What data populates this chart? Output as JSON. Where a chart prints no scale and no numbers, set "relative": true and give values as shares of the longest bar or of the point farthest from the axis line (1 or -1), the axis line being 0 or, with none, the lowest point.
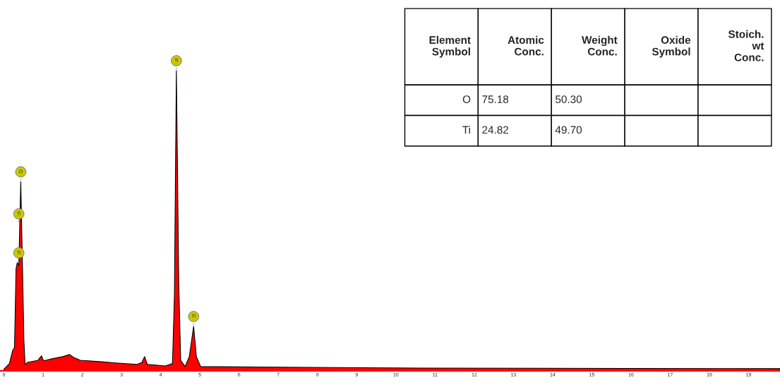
{
  "chart_data": {
    "type": "area",
    "relative": true,
    "x": [
      0,
      0.14,
      0.22,
      0.27,
      0.31,
      0.34,
      0.38,
      0.43,
      0.47,
      0.51,
      0.54,
      0.6,
      0.87,
      0.96,
      1.01,
      1.23,
      1.5,
      1.68,
      1.77,
      1.95,
      2.49,
      2.85,
      3.39,
      3.52,
      3.59,
      3.66,
      4.12,
      4.3,
      4.35,
      4.4,
      4.46,
      4.51,
      4.62,
      4.73,
      4.84,
      4.91,
      5.02,
      7.0,
      10.6,
      19.8
    ],
    "series": [
      {
        "color": "#ff0000",
        "values": [
          0.005,
          0.024,
          0.066,
          0.078,
          0.34,
          0.36,
          0.35,
          0.63,
          0.37,
          0.1,
          0.02,
          0.028,
          0.035,
          0.05,
          0.033,
          0.04,
          0.047,
          0.054,
          0.045,
          0.035,
          0.03,
          0.026,
          0.021,
          0.028,
          0.047,
          0.021,
          0.016,
          0.024,
          0.25,
          1.0,
          0.29,
          0.035,
          0.014,
          0.047,
          0.148,
          0.047,
          0.014,
          0.012,
          0.009,
          0.007
        ]
      }
    ],
    "xlim": [
      -0.1,
      19.8
    ],
    "xticks": [
      0,
      1,
      2,
      3,
      4,
      5,
      6,
      7,
      8,
      9,
      10,
      11,
      12,
      13,
      14,
      15,
      16,
      17,
      18,
      19
    ],
    "annotations": [
      {
        "text": "O",
        "x": 0.43,
        "y": 0.63
      },
      {
        "text": "Ti",
        "x": 0.38,
        "y": 0.49
      },
      {
        "text": "Ti",
        "x": 0.38,
        "y": 0.36
      },
      {
        "text": "Ti",
        "x": 4.4,
        "y": 1.0
      },
      {
        "text": "Ti",
        "x": 4.84,
        "y": 0.148
      },
      "Element Symbol",
      "Atomic Conc.",
      "Weight Conc.",
      "Oxide Symbol",
      "Stoich. wt Conc.",
      "O",
      "75.18",
      "50.30",
      "Ti",
      "24.82",
      "49.70"
    ]
  }
}
